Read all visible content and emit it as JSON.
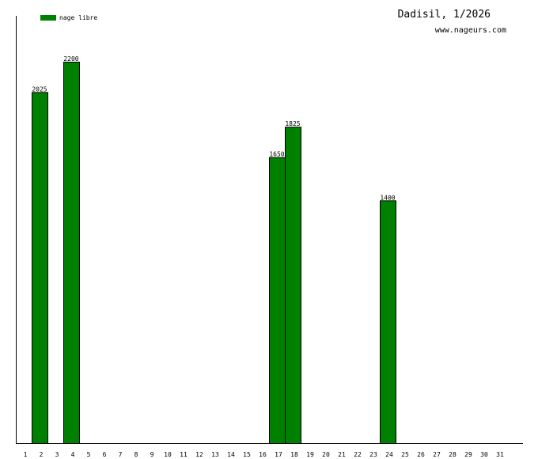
{
  "colors": {
    "bar": "#008000",
    "bar_stroke": "#000000",
    "axis": "#000000",
    "background": "#ffffff"
  },
  "chart_data": {
    "type": "bar",
    "title": "Dadisil, 1/2026",
    "subtitle": "www.nageurs.com",
    "xlabel": "",
    "ylabel": "",
    "grid": false,
    "legend": {
      "position": "top-left",
      "entries": [
        "nage libre"
      ]
    },
    "categories": [
      "1",
      "2",
      "3",
      "4",
      "5",
      "6",
      "7",
      "8",
      "9",
      "10",
      "11",
      "12",
      "13",
      "14",
      "15",
      "16",
      "17",
      "18",
      "19",
      "20",
      "21",
      "22",
      "23",
      "24",
      "25",
      "26",
      "27",
      "28",
      "29",
      "30",
      "31"
    ],
    "series": [
      {
        "name": "nage libre",
        "values": [
          null,
          2025,
          null,
          2200,
          null,
          null,
          null,
          null,
          null,
          null,
          null,
          null,
          null,
          null,
          null,
          null,
          1650,
          1825,
          null,
          null,
          null,
          null,
          null,
          1400,
          null,
          null,
          null,
          null,
          null,
          null,
          null
        ]
      }
    ],
    "ylim": [
      0,
      2400
    ]
  }
}
